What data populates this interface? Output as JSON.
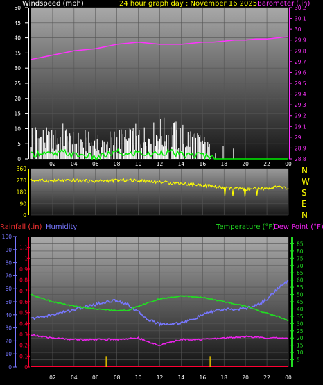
{
  "header": {
    "wind_label": "Windspeed (mph)",
    "date_label": "24 hour graph day : November 16 2025",
    "baro_label": "Barometer (.in)"
  },
  "middle": {
    "compass": [
      "N",
      "W",
      "S",
      "E",
      "N"
    ]
  },
  "bottom_header": {
    "rain_label": "Rainfall (.in)",
    "humidity_label": "Humidity",
    "temp_label": "Temperature (°F)",
    "dew_label": "Dew Point (°F)"
  },
  "colors": {
    "wind_axis": "#ffffff",
    "barometer": "#ff33ff",
    "wind_gust": "#ffffff",
    "wind_avg": "#00ee00",
    "direction": "#ffff00",
    "rainfall": "#ff0033",
    "humidity": "#7777ff",
    "temperature": "#22dd22",
    "dewpoint": "#ee22ee",
    "rain_bars": "#ddbb00",
    "header_date": "#ffff00"
  },
  "chart_data": [
    {
      "type": "line",
      "title": "24 hour graph day : November 16 2025",
      "x_ticks": [
        "02",
        "04",
        "06",
        "08",
        "10",
        "12",
        "14",
        "16",
        "18",
        "20",
        "22",
        "00"
      ],
      "x_range": [
        0,
        24
      ],
      "y_left": {
        "label": "Windspeed (mph)",
        "range": [
          0,
          50
        ],
        "ticks": [
          0,
          5,
          10,
          15,
          20,
          25,
          30,
          35,
          40,
          45,
          50
        ]
      },
      "y_right": {
        "label": "Barometer (.in)",
        "range": [
          28.8,
          30.2
        ],
        "ticks": [
          "28.8",
          "28.9",
          "29",
          "29.1",
          "29.2",
          "29.3",
          "29.4",
          "29.5",
          "29.6",
          "29.7",
          "29.8",
          "29.9",
          "30",
          "30.1",
          "30.2"
        ]
      },
      "series": [
        {
          "name": "Barometer",
          "axis": "right",
          "x": [
            0,
            1,
            2,
            3,
            4,
            5,
            6,
            7,
            8,
            9,
            10,
            11,
            12,
            13,
            14,
            15,
            16,
            17,
            18,
            19,
            20,
            21,
            22,
            23,
            24
          ],
          "y": [
            29.72,
            29.74,
            29.76,
            29.78,
            29.8,
            29.81,
            29.82,
            29.84,
            29.86,
            29.87,
            29.88,
            29.87,
            29.86,
            29.86,
            29.86,
            29.87,
            29.88,
            29.88,
            29.89,
            29.9,
            29.9,
            29.91,
            29.91,
            29.92,
            29.93
          ]
        },
        {
          "name": "Wind gust",
          "axis": "left",
          "x": [
            0,
            1,
            2,
            3,
            4,
            5,
            6,
            7,
            8,
            9,
            10,
            11,
            12,
            13,
            14,
            15,
            16,
            17,
            18,
            19,
            20
          ],
          "y": [
            12,
            10,
            9,
            11,
            8,
            9,
            7,
            8,
            10,
            9,
            11,
            10,
            13,
            12,
            11,
            10,
            8,
            3,
            4,
            4,
            3
          ]
        },
        {
          "name": "Wind average",
          "axis": "left",
          "x": [
            0,
            1,
            2,
            3,
            4,
            5,
            6,
            7,
            8,
            9,
            10,
            11,
            12,
            13,
            14,
            15,
            16,
            17,
            18,
            19,
            20,
            21,
            22,
            23,
            24
          ],
          "y": [
            1,
            2,
            1,
            2,
            1,
            1,
            0,
            1,
            2,
            1,
            2,
            1,
            2,
            2,
            1,
            1,
            1,
            0,
            0,
            0,
            0,
            0,
            0,
            0,
            0
          ]
        }
      ]
    },
    {
      "type": "line",
      "x_range": [
        0,
        24
      ],
      "y_left": {
        "range": [
          0,
          360
        ],
        "ticks": [
          0,
          90,
          180,
          270,
          360
        ]
      },
      "series": [
        {
          "name": "Wind direction",
          "x": [
            0,
            2,
            4,
            6,
            8,
            10,
            12,
            14,
            16,
            18,
            20,
            22,
            23,
            24
          ],
          "y": [
            270,
            265,
            268,
            262,
            270,
            268,
            255,
            245,
            230,
            210,
            200,
            205,
            220,
            205
          ]
        }
      ]
    },
    {
      "type": "line",
      "x_ticks": [
        "02",
        "04",
        "06",
        "08",
        "10",
        "12",
        "14",
        "16",
        "18",
        "20",
        "22",
        "00"
      ],
      "x_range": [
        0,
        24
      ],
      "y_left_humidity": {
        "label": "Humidity",
        "range": [
          0,
          100
        ],
        "ticks": [
          0,
          10,
          20,
          30,
          40,
          50,
          60,
          70,
          80,
          90,
          100
        ]
      },
      "y_left_rain": {
        "label": "Rainfall (.in)",
        "range": [
          0,
          1.2
        ],
        "ticks": [
          "0",
          "0.1",
          "0.2",
          "0.3",
          "0.4",
          "0.5",
          "0.6",
          "0.7",
          "0.8",
          "0.9",
          "1",
          "1.1"
        ]
      },
      "y_right": {
        "label": "Temperature (°F)",
        "range": [
          0,
          90
        ],
        "ticks": [
          5,
          10,
          15,
          20,
          25,
          30,
          35,
          40,
          45,
          50,
          55,
          60,
          65,
          70,
          75,
          80,
          85
        ]
      },
      "series": [
        {
          "name": "Humidity",
          "axis": "left_humidity",
          "x": [
            0,
            2,
            4,
            6,
            7,
            8,
            9,
            10,
            11,
            12,
            13,
            14,
            15,
            16,
            17,
            18,
            19,
            20,
            21,
            22,
            23,
            24
          ],
          "y": [
            37,
            40,
            44,
            48,
            50,
            51,
            48,
            42,
            36,
            33,
            33,
            34,
            36,
            40,
            43,
            44,
            44,
            45,
            47,
            52,
            60,
            66
          ]
        },
        {
          "name": "Temperature",
          "axis": "right",
          "x": [
            0,
            2,
            4,
            6,
            8,
            9,
            10,
            12,
            14,
            16,
            18,
            20,
            22,
            23,
            24
          ],
          "y": [
            50,
            45,
            42,
            40,
            39,
            39,
            42,
            47,
            49,
            48,
            45,
            42,
            37,
            35,
            32
          ]
        },
        {
          "name": "Dew Point",
          "axis": "right",
          "x": [
            0,
            2,
            4,
            6,
            8,
            10,
            11,
            12,
            13,
            14,
            16,
            18,
            20,
            22,
            24
          ],
          "y": [
            22,
            20,
            19,
            19,
            19,
            20,
            17,
            15,
            17,
            19,
            19,
            20,
            21,
            20,
            20
          ]
        },
        {
          "name": "Rainfall",
          "axis": "left_rain",
          "x": [
            0,
            24
          ],
          "y": [
            0,
            0
          ]
        },
        {
          "name": "Rain rate",
          "axis": "left_rain",
          "x": [
            7,
            16.7
          ],
          "y": [
            0.1,
            0.1
          ]
        }
      ]
    }
  ]
}
